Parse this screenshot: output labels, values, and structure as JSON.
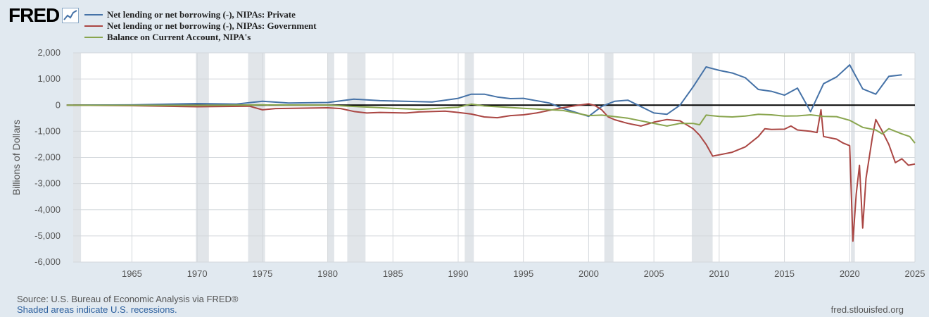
{
  "logo": {
    "text": "FRED"
  },
  "footer": {
    "source": "Source: U.S. Bureau of Economic Analysis via FRED®",
    "note": "Shaded areas indicate U.S. recessions.",
    "site": "fred.stlouisfed.org"
  },
  "chart_data": {
    "type": "line",
    "title": "",
    "xlabel": "",
    "ylabel": "Billions of Dollars",
    "xlim": [
      1960.5,
      2025
    ],
    "ylim": [
      -6000,
      2000
    ],
    "grid": true,
    "legend": "top-left",
    "x_ticks": [
      "1965",
      "1970",
      "1975",
      "1980",
      "1985",
      "1990",
      "1995",
      "2000",
      "2005",
      "2010",
      "2015",
      "2020",
      "2025"
    ],
    "y_ticks": [
      "2,000",
      "1,000",
      "0",
      "-1,000",
      "-2,000",
      "-3,000",
      "-4,000",
      "-5,000",
      "-6,000"
    ],
    "recessions": [
      [
        1960.3,
        1961.1
      ],
      [
        1969.9,
        1970.9
      ],
      [
        1973.9,
        1975.2
      ],
      [
        1980.0,
        1980.5
      ],
      [
        1981.5,
        1982.9
      ],
      [
        1990.5,
        1991.2
      ],
      [
        2001.2,
        2001.9
      ],
      [
        2007.9,
        2009.5
      ],
      [
        2020.1,
        2020.4
      ]
    ],
    "series": [
      {
        "name": "Net lending or net borrowing (-), NIPAs: Private",
        "color": "#4572a7",
        "points": [
          [
            1960,
            0
          ],
          [
            1965,
            10
          ],
          [
            1970,
            60
          ],
          [
            1973,
            40
          ],
          [
            1975,
            150
          ],
          [
            1977,
            80
          ],
          [
            1980,
            100
          ],
          [
            1982,
            230
          ],
          [
            1984,
            170
          ],
          [
            1988,
            120
          ],
          [
            1990,
            260
          ],
          [
            1991,
            420
          ],
          [
            1992,
            420
          ],
          [
            1993,
            310
          ],
          [
            1994,
            250
          ],
          [
            1995,
            260
          ],
          [
            1997,
            80
          ],
          [
            1998,
            -120
          ],
          [
            2000,
            -430
          ],
          [
            2001,
            -50
          ],
          [
            2002,
            150
          ],
          [
            2003,
            190
          ],
          [
            2005,
            -300
          ],
          [
            2006,
            -350
          ],
          [
            2007,
            0
          ],
          [
            2008,
            700
          ],
          [
            2009,
            1460
          ],
          [
            2010,
            1330
          ],
          [
            2011,
            1230
          ],
          [
            2012,
            1050
          ],
          [
            2013,
            600
          ],
          [
            2014,
            530
          ],
          [
            2015,
            380
          ],
          [
            2016,
            650
          ],
          [
            2017,
            -250
          ],
          [
            2018,
            820
          ],
          [
            2019,
            1080
          ],
          [
            2020,
            1540
          ],
          [
            2021,
            620
          ],
          [
            2022,
            420
          ],
          [
            2023,
            1100
          ],
          [
            2024,
            1160
          ]
        ]
      },
      {
        "name": "Net lending or net borrowing (-), NIPAs: Government",
        "color": "#aa4643",
        "points": [
          [
            1960,
            0
          ],
          [
            1965,
            -20
          ],
          [
            1970,
            -60
          ],
          [
            1974,
            -40
          ],
          [
            1975,
            -180
          ],
          [
            1976,
            -130
          ],
          [
            1980,
            -100
          ],
          [
            1981,
            -130
          ],
          [
            1982,
            -240
          ],
          [
            1983,
            -300
          ],
          [
            1984,
            -280
          ],
          [
            1986,
            -300
          ],
          [
            1987,
            -260
          ],
          [
            1989,
            -230
          ],
          [
            1990,
            -280
          ],
          [
            1991,
            -340
          ],
          [
            1992,
            -450
          ],
          [
            1993,
            -480
          ],
          [
            1994,
            -400
          ],
          [
            1995,
            -370
          ],
          [
            1996,
            -300
          ],
          [
            1997,
            -200
          ],
          [
            1998,
            -100
          ],
          [
            1999,
            -20
          ],
          [
            2000,
            50
          ],
          [
            2000.5,
            -20
          ],
          [
            2001,
            -180
          ],
          [
            2001.5,
            -450
          ],
          [
            2002,
            -560
          ],
          [
            2003,
            -700
          ],
          [
            2004,
            -800
          ],
          [
            2005,
            -650
          ],
          [
            2006,
            -550
          ],
          [
            2007,
            -600
          ],
          [
            2008,
            -900
          ],
          [
            2008.5,
            -1150
          ],
          [
            2009,
            -1500
          ],
          [
            2009.5,
            -1950
          ],
          [
            2010,
            -1900
          ],
          [
            2011,
            -1800
          ],
          [
            2012,
            -1600
          ],
          [
            2013,
            -1200
          ],
          [
            2013.5,
            -900
          ],
          [
            2014,
            -930
          ],
          [
            2015,
            -920
          ],
          [
            2015.5,
            -800
          ],
          [
            2016,
            -950
          ],
          [
            2017,
            -1000
          ],
          [
            2017.5,
            -1050
          ],
          [
            2017.8,
            -180
          ],
          [
            2018,
            -1200
          ],
          [
            2019,
            -1300
          ],
          [
            2019.5,
            -1450
          ],
          [
            2020,
            -1550
          ],
          [
            2020.25,
            -5200
          ],
          [
            2020.5,
            -3400
          ],
          [
            2020.75,
            -2300
          ],
          [
            2021,
            -4700
          ],
          [
            2021.25,
            -2800
          ],
          [
            2021.5,
            -2000
          ],
          [
            2021.75,
            -1200
          ],
          [
            2022,
            -550
          ],
          [
            2022.5,
            -1000
          ],
          [
            2023,
            -1500
          ],
          [
            2023.5,
            -2200
          ],
          [
            2024,
            -2050
          ],
          [
            2024.5,
            -2300
          ],
          [
            2025,
            -2250
          ]
        ]
      },
      {
        "name": "Balance on Current Account, NIPA's",
        "color": "#89a54e",
        "points": [
          [
            1960,
            0
          ],
          [
            1970,
            -10
          ],
          [
            1975,
            10
          ],
          [
            1980,
            0
          ],
          [
            1985,
            -120
          ],
          [
            1987,
            -160
          ],
          [
            1990,
            -80
          ],
          [
            1991,
            40
          ],
          [
            1992,
            -30
          ],
          [
            1995,
            -120
          ],
          [
            1998,
            -200
          ],
          [
            2000,
            -400
          ],
          [
            2001,
            -380
          ],
          [
            2003,
            -500
          ],
          [
            2004,
            -600
          ],
          [
            2005,
            -700
          ],
          [
            2006,
            -800
          ],
          [
            2007,
            -700
          ],
          [
            2008,
            -700
          ],
          [
            2008.5,
            -750
          ],
          [
            2009,
            -380
          ],
          [
            2010,
            -430
          ],
          [
            2011,
            -450
          ],
          [
            2012,
            -420
          ],
          [
            2013,
            -350
          ],
          [
            2014,
            -370
          ],
          [
            2015,
            -420
          ],
          [
            2016,
            -410
          ],
          [
            2017,
            -370
          ],
          [
            2018,
            -430
          ],
          [
            2019,
            -440
          ],
          [
            2020,
            -580
          ],
          [
            2021,
            -850
          ],
          [
            2022,
            -950
          ],
          [
            2022.5,
            -1100
          ],
          [
            2023,
            -900
          ],
          [
            2024,
            -1100
          ],
          [
            2024.6,
            -1200
          ],
          [
            2025,
            -1450
          ]
        ]
      }
    ]
  }
}
